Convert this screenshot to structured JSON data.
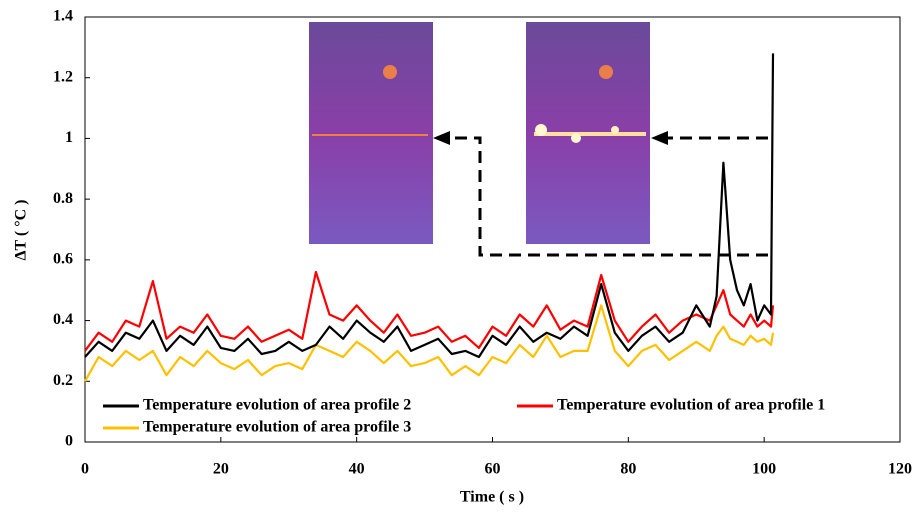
{
  "chart_data": {
    "type": "line",
    "xlabel": "Time ( s )",
    "ylabel": "ΔT ( °C )",
    "xlim": [
      0,
      120
    ],
    "xticks": [
      0,
      20,
      40,
      60,
      80,
      100,
      120
    ],
    "ylim": [
      0,
      1.4
    ],
    "yticks": [
      0,
      0.2,
      0.4,
      0.6,
      0.8,
      1,
      1.2,
      1.4
    ],
    "grid": false,
    "legend": "bottom",
    "x": [
      0,
      2,
      4,
      6,
      8,
      10,
      12,
      14,
      16,
      18,
      20,
      22,
      24,
      26,
      28,
      30,
      32,
      34,
      36,
      38,
      40,
      42,
      44,
      46,
      48,
      50,
      52,
      54,
      56,
      58,
      60,
      62,
      64,
      66,
      68,
      70,
      72,
      74,
      76,
      78,
      80,
      82,
      84,
      86,
      88,
      90,
      92,
      93,
      94,
      95,
      96,
      97,
      98,
      99,
      100,
      101,
      101.3
    ],
    "series": [
      {
        "name": "Temperature evolution of area profile 2",
        "color": "#000000",
        "values": [
          0.28,
          0.33,
          0.3,
          0.36,
          0.34,
          0.4,
          0.3,
          0.35,
          0.32,
          0.38,
          0.31,
          0.3,
          0.34,
          0.29,
          0.3,
          0.33,
          0.3,
          0.32,
          0.38,
          0.34,
          0.4,
          0.36,
          0.33,
          0.38,
          0.3,
          0.32,
          0.34,
          0.29,
          0.3,
          0.28,
          0.35,
          0.32,
          0.38,
          0.33,
          0.36,
          0.34,
          0.38,
          0.35,
          0.52,
          0.36,
          0.3,
          0.35,
          0.38,
          0.33,
          0.36,
          0.45,
          0.38,
          0.48,
          0.92,
          0.6,
          0.5,
          0.45,
          0.52,
          0.4,
          0.45,
          0.42,
          1.28
        ]
      },
      {
        "name": "Temperature evolution of area profile 1",
        "color": "#ff0000",
        "values": [
          0.3,
          0.36,
          0.33,
          0.4,
          0.38,
          0.53,
          0.34,
          0.38,
          0.36,
          0.42,
          0.35,
          0.34,
          0.38,
          0.33,
          0.35,
          0.37,
          0.34,
          0.56,
          0.42,
          0.4,
          0.45,
          0.4,
          0.36,
          0.42,
          0.35,
          0.36,
          0.38,
          0.33,
          0.35,
          0.31,
          0.38,
          0.35,
          0.42,
          0.38,
          0.45,
          0.37,
          0.4,
          0.38,
          0.55,
          0.4,
          0.33,
          0.38,
          0.42,
          0.36,
          0.4,
          0.42,
          0.4,
          0.45,
          0.5,
          0.42,
          0.4,
          0.38,
          0.42,
          0.38,
          0.4,
          0.38,
          0.45
        ]
      },
      {
        "name": "Temperature evolution of area profile 3",
        "color": "#ffc000",
        "values": [
          0.2,
          0.28,
          0.25,
          0.3,
          0.27,
          0.3,
          0.22,
          0.28,
          0.25,
          0.3,
          0.26,
          0.24,
          0.27,
          0.22,
          0.25,
          0.26,
          0.24,
          0.32,
          0.3,
          0.28,
          0.33,
          0.3,
          0.26,
          0.3,
          0.25,
          0.26,
          0.28,
          0.22,
          0.25,
          0.22,
          0.28,
          0.26,
          0.32,
          0.28,
          0.35,
          0.28,
          0.3,
          0.3,
          0.45,
          0.3,
          0.25,
          0.3,
          0.32,
          0.27,
          0.3,
          0.33,
          0.3,
          0.35,
          0.38,
          0.34,
          0.33,
          0.32,
          0.35,
          0.33,
          0.34,
          0.32,
          0.36
        ]
      }
    ]
  }
}
